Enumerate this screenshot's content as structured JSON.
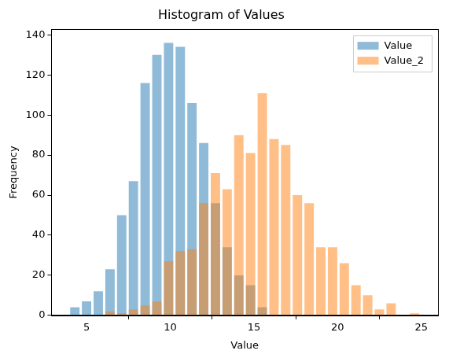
{
  "chart_data": {
    "type": "histogram",
    "title": "Histogram of Values",
    "x_label": "Value",
    "y_label": "Frequency",
    "bins": [
      3.95,
      4.65,
      5.35,
      6.05,
      6.75,
      7.45,
      8.15,
      8.85,
      9.55,
      10.25,
      10.95,
      11.65,
      12.35,
      13.05,
      13.75,
      14.45,
      15.15,
      15.85,
      16.55,
      17.25,
      17.95,
      18.65,
      19.35,
      20.05,
      20.75,
      21.45,
      22.15,
      22.85,
      23.55,
      24.25,
      24.95
    ],
    "series": [
      {
        "name": "Value",
        "color": "#1f77b4",
        "values": [
          4,
          7,
          12,
          23,
          50,
          67,
          116,
          130,
          136,
          134,
          106,
          86,
          56,
          34,
          20,
          15,
          4,
          0,
          0,
          0,
          0,
          0,
          0,
          0,
          0,
          0,
          0,
          0,
          0,
          0
        ]
      },
      {
        "name": "Value_2",
        "color": "#ff7f0e",
        "values": [
          0,
          0,
          0,
          2,
          1,
          3,
          5,
          7,
          27,
          32,
          33,
          56,
          71,
          63,
          90,
          81,
          111,
          88,
          85,
          60,
          56,
          34,
          34,
          26,
          15,
          10,
          3,
          6,
          0,
          1
        ]
      }
    ],
    "xlim": [
      2.9,
      26.0
    ],
    "xticks": [
      5,
      10,
      15,
      20,
      25
    ],
    "ylim": [
      0,
      142.8
    ],
    "yticks": [
      0,
      20,
      40,
      60,
      80,
      100,
      120,
      140
    ],
    "grid": false,
    "legend": "upper right"
  }
}
